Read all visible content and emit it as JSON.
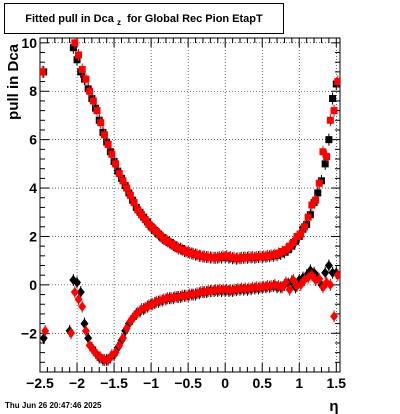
{
  "title": {
    "main": "Fitted pull in Dca",
    "subscript": "z",
    "rest": "for Global Rec Pion EtapT"
  },
  "timestamp": "Thu Jun 26 20:47:46 2025",
  "chart_data": {
    "type": "scatter",
    "xlabel": "η",
    "ylabel": "pull in Dca",
    "xlim": [
      -2.5,
      1.55
    ],
    "ylim": [
      -3.6,
      10.2
    ],
    "xticks": [
      -2.5,
      -2,
      -1.5,
      -1,
      -0.5,
      0,
      0.5,
      1,
      1.5
    ],
    "xtick_labels": [
      "−2.5",
      "−2",
      "−1.5",
      "−1",
      "−0.5",
      "0",
      "0.5",
      "1",
      "1.5"
    ],
    "yticks": [
      -2,
      0,
      2,
      4,
      6,
      8,
      10
    ],
    "ytick_labels": [
      "−2",
      "0",
      "2",
      "4",
      "6",
      "8",
      "10"
    ],
    "grid": true,
    "colors": {
      "series_a": "#000000",
      "series_b": "#ff0000"
    },
    "series": [
      {
        "marker": "square",
        "color": "#000000",
        "x": [
          -2.45,
          -2.05,
          -2.0,
          -1.95,
          -1.9,
          -1.85,
          -1.8,
          -1.75,
          -1.7,
          -1.65,
          -1.6,
          -1.55,
          -1.5,
          -1.45,
          -1.4,
          -1.35,
          -1.3,
          -1.25,
          -1.2,
          -1.15,
          -1.1,
          -1.05,
          -1.0,
          -0.95,
          -0.9,
          -0.85,
          -0.8,
          -0.75,
          -0.7,
          -0.65,
          -0.6,
          -0.55,
          -0.5,
          -0.45,
          -0.4,
          -0.35,
          -0.3,
          -0.25,
          -0.2,
          -0.15,
          -0.1,
          -0.05,
          0.0,
          0.05,
          0.1,
          0.15,
          0.2,
          0.25,
          0.3,
          0.35,
          0.4,
          0.45,
          0.5,
          0.55,
          0.6,
          0.65,
          0.7,
          0.75,
          0.8,
          0.85,
          0.9,
          0.95,
          1.0,
          1.05,
          1.1,
          1.15,
          1.2,
          1.25,
          1.3,
          1.35,
          1.4,
          1.45,
          1.5
        ],
        "y": [
          8.8,
          9.8,
          9.3,
          8.8,
          8.5,
          8.1,
          7.7,
          7.3,
          6.8,
          6.3,
          5.9,
          5.5,
          5.1,
          4.7,
          4.4,
          4.1,
          3.8,
          3.5,
          3.2,
          3.0,
          2.8,
          2.6,
          2.4,
          2.25,
          2.1,
          1.95,
          1.85,
          1.75,
          1.65,
          1.55,
          1.5,
          1.4,
          1.35,
          1.3,
          1.25,
          1.2,
          1.17,
          1.15,
          1.13,
          1.12,
          1.12,
          1.13,
          1.15,
          1.12,
          1.1,
          1.08,
          1.1,
          1.12,
          1.12,
          1.13,
          1.12,
          1.15,
          1.15,
          1.16,
          1.18,
          1.2,
          1.22,
          1.28,
          1.35,
          1.45,
          1.6,
          1.8,
          2.0,
          2.3,
          2.5,
          2.9,
          3.4,
          3.8,
          4.3,
          5.0,
          6.0,
          7.7,
          8.3
        ]
      },
      {
        "marker": "square",
        "color": "#ff0000",
        "x": [
          -2.47,
          -2.03,
          -1.98,
          -1.93,
          -1.88,
          -1.83,
          -1.78,
          -1.73,
          -1.68,
          -1.63,
          -1.58,
          -1.53,
          -1.48,
          -1.43,
          -1.38,
          -1.33,
          -1.28,
          -1.23,
          -1.18,
          -1.13,
          -1.08,
          -1.03,
          -0.98,
          -0.93,
          -0.88,
          -0.83,
          -0.78,
          -0.73,
          -0.68,
          -0.63,
          -0.58,
          -0.53,
          -0.48,
          -0.43,
          -0.38,
          -0.33,
          -0.28,
          -0.23,
          -0.18,
          -0.13,
          -0.08,
          -0.03,
          0.02,
          0.07,
          0.12,
          0.17,
          0.22,
          0.27,
          0.32,
          0.37,
          0.42,
          0.47,
          0.52,
          0.57,
          0.62,
          0.67,
          0.72,
          0.77,
          0.82,
          0.87,
          0.92,
          0.97,
          1.02,
          1.07,
          1.12,
          1.17,
          1.22,
          1.27,
          1.32,
          1.37,
          1.42,
          1.47,
          1.52
        ],
        "y": [
          8.8,
          10.0,
          9.5,
          8.9,
          8.5,
          8.0,
          7.6,
          7.2,
          6.7,
          6.2,
          5.8,
          5.4,
          5.0,
          4.6,
          4.3,
          4.0,
          3.7,
          3.4,
          3.1,
          2.9,
          2.7,
          2.5,
          2.35,
          2.2,
          2.05,
          1.9,
          1.8,
          1.7,
          1.6,
          1.5,
          1.45,
          1.38,
          1.32,
          1.28,
          1.25,
          1.2,
          1.17,
          1.15,
          1.13,
          1.12,
          1.15,
          1.18,
          1.2,
          1.15,
          1.12,
          1.1,
          1.12,
          1.13,
          1.15,
          1.15,
          1.15,
          1.17,
          1.18,
          1.2,
          1.22,
          1.25,
          1.3,
          1.38,
          1.45,
          1.6,
          1.75,
          2.0,
          2.1,
          2.4,
          2.8,
          3.3,
          3.5,
          4.2,
          5.5,
          5.3,
          6.8,
          7.2,
          8.4
        ]
      },
      {
        "marker": "diamond",
        "color": "#000000",
        "x": [
          -2.45,
          -2.1,
          -2.05,
          -2.0,
          -1.95,
          -1.9,
          -1.85,
          -1.8,
          -1.75,
          -1.7,
          -1.65,
          -1.6,
          -1.55,
          -1.5,
          -1.45,
          -1.4,
          -1.35,
          -1.3,
          -1.25,
          -1.2,
          -1.15,
          -1.1,
          -1.05,
          -1.0,
          -0.95,
          -0.9,
          -0.85,
          -0.8,
          -0.75,
          -0.7,
          -0.65,
          -0.6,
          -0.55,
          -0.5,
          -0.45,
          -0.4,
          -0.35,
          -0.3,
          -0.25,
          -0.2,
          -0.15,
          -0.1,
          -0.05,
          0.0,
          0.05,
          0.1,
          0.15,
          0.2,
          0.25,
          0.3,
          0.35,
          0.4,
          0.45,
          0.5,
          0.55,
          0.6,
          0.65,
          0.7,
          0.75,
          0.8,
          0.85,
          0.9,
          0.95,
          1.0,
          1.05,
          1.1,
          1.15,
          1.2,
          1.25,
          1.3,
          1.35,
          1.4,
          1.45,
          1.5
        ],
        "y": [
          -2.2,
          -1.9,
          0.2,
          0.1,
          -0.3,
          -1.6,
          -2.2,
          -2.6,
          -2.8,
          -3.0,
          -3.1,
          -3.1,
          -3.0,
          -2.9,
          -2.6,
          -2.3,
          -1.9,
          -1.6,
          -1.4,
          -1.2,
          -1.1,
          -1.0,
          -0.9,
          -0.8,
          -0.75,
          -0.7,
          -0.65,
          -0.6,
          -0.55,
          -0.55,
          -0.5,
          -0.5,
          -0.45,
          -0.45,
          -0.4,
          -0.4,
          -0.35,
          -0.3,
          -0.3,
          -0.25,
          -0.25,
          -0.25,
          -0.25,
          -0.25,
          -0.25,
          -0.25,
          -0.22,
          -0.2,
          -0.2,
          -0.2,
          -0.18,
          -0.15,
          -0.15,
          -0.12,
          -0.1,
          -0.08,
          -0.05,
          -0.1,
          -0.1,
          0.0,
          0.05,
          0.15,
          -0.1,
          0.2,
          0.3,
          0.4,
          0.6,
          0.5,
          0.3,
          0.0,
          0.5,
          0.8,
          0.5,
          0.5
        ]
      },
      {
        "marker": "diamond",
        "color": "#ff0000",
        "x": [
          -2.43,
          -2.08,
          -2.03,
          -1.98,
          -1.93,
          -1.88,
          -1.83,
          -1.78,
          -1.73,
          -1.68,
          -1.63,
          -1.58,
          -1.53,
          -1.48,
          -1.43,
          -1.38,
          -1.33,
          -1.28,
          -1.23,
          -1.18,
          -1.13,
          -1.08,
          -1.03,
          -0.98,
          -0.93,
          -0.88,
          -0.83,
          -0.78,
          -0.73,
          -0.68,
          -0.63,
          -0.58,
          -0.53,
          -0.48,
          -0.43,
          -0.38,
          -0.33,
          -0.28,
          -0.23,
          -0.18,
          -0.13,
          -0.08,
          -0.03,
          0.02,
          0.07,
          0.12,
          0.17,
          0.22,
          0.27,
          0.32,
          0.37,
          0.42,
          0.47,
          0.52,
          0.57,
          0.62,
          0.67,
          0.72,
          0.77,
          0.82,
          0.87,
          0.92,
          0.97,
          1.02,
          1.07,
          1.12,
          1.17,
          1.22,
          1.27,
          1.32,
          1.37,
          1.42,
          1.47,
          1.52
        ],
        "y": [
          -1.9,
          -2.0,
          -0.3,
          -0.6,
          -0.9,
          -1.9,
          -2.5,
          -2.7,
          -2.9,
          -3.0,
          -3.1,
          -3.1,
          -2.9,
          -2.8,
          -2.5,
          -2.2,
          -1.8,
          -1.5,
          -1.3,
          -1.15,
          -1.0,
          -0.95,
          -0.85,
          -0.8,
          -0.7,
          -0.65,
          -0.6,
          -0.55,
          -0.55,
          -0.5,
          -0.5,
          -0.45,
          -0.45,
          -0.4,
          -0.4,
          -0.35,
          -0.3,
          -0.3,
          -0.25,
          -0.25,
          -0.22,
          -0.2,
          -0.2,
          -0.2,
          -0.22,
          -0.2,
          -0.18,
          -0.15,
          -0.15,
          -0.15,
          -0.12,
          -0.1,
          -0.1,
          -0.08,
          -0.05,
          -0.05,
          0.0,
          -0.05,
          -0.1,
          0.1,
          -0.2,
          0.2,
          -0.05,
          0.0,
          0.2,
          0.3,
          0.4,
          0.2,
          0.25,
          -0.1,
          0.1,
          0.0,
          -1.3,
          0.4
        ]
      }
    ]
  }
}
